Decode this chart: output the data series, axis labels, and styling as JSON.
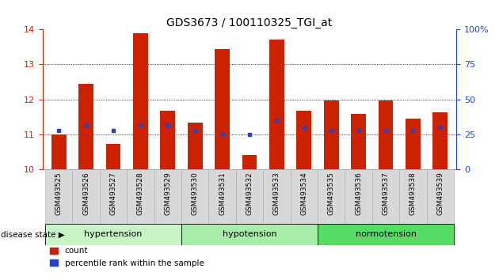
{
  "title": "GDS3673 / 100110325_TGI_at",
  "samples": [
    "GSM493525",
    "GSM493526",
    "GSM493527",
    "GSM493528",
    "GSM493529",
    "GSM493530",
    "GSM493531",
    "GSM493532",
    "GSM493533",
    "GSM493534",
    "GSM493535",
    "GSM493536",
    "GSM493537",
    "GSM493538",
    "GSM493539"
  ],
  "bar_values": [
    11.0,
    12.45,
    10.72,
    13.88,
    11.68,
    11.33,
    13.45,
    10.42,
    13.72,
    11.68,
    11.98,
    11.58,
    11.98,
    11.45,
    11.62
  ],
  "pct_positions": [
    28,
    32,
    28,
    32,
    32,
    28,
    25,
    25,
    35,
    30,
    28,
    28,
    28,
    28,
    30
  ],
  "bar_color": "#cc2200",
  "dot_color": "#2244cc",
  "ylim_left": [
    10,
    14
  ],
  "ylim_right": [
    0,
    100
  ],
  "yticks_left": [
    10,
    11,
    12,
    13,
    14
  ],
  "yticks_right": [
    0,
    25,
    50,
    75,
    100
  ],
  "ytick_right_labels": [
    "0",
    "25",
    "50",
    "75",
    "100%"
  ],
  "grid_lines": [
    11,
    12,
    13
  ],
  "groups": [
    {
      "label": "hypertension",
      "start": 0,
      "end": 5,
      "color": "#c8f5c8"
    },
    {
      "label": "hypotension",
      "start": 5,
      "end": 10,
      "color": "#a8eeaa"
    },
    {
      "label": "normotension",
      "start": 10,
      "end": 15,
      "color": "#55dd66"
    }
  ],
  "disease_state_label": "disease state",
  "bar_width": 0.55,
  "legend_count_label": "count",
  "legend_pct_label": "percentile rank within the sample",
  "tick_label_color_left": "#cc2200",
  "tick_label_color_right": "#2244cc",
  "xtick_bg_color": "#d8d8d8",
  "xtick_border_color": "#aaaaaa"
}
